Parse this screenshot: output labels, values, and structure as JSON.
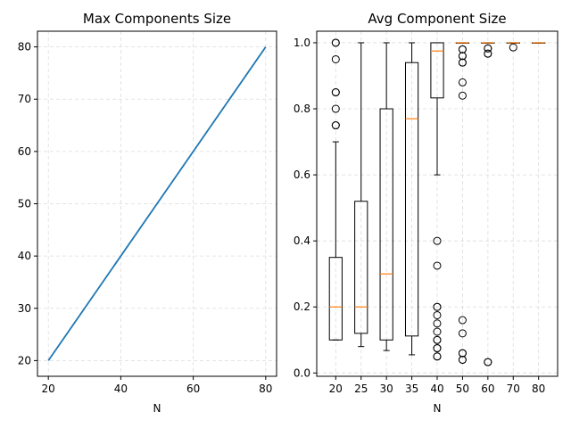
{
  "chart_data": [
    {
      "type": "line",
      "title": "Max Components Size",
      "xlabel": "N",
      "ylabel": "",
      "xlim": [
        17,
        83
      ],
      "ylim": [
        17,
        83
      ],
      "xticks": [
        20,
        40,
        60,
        80
      ],
      "yticks": [
        20,
        30,
        40,
        50,
        60,
        70,
        80
      ],
      "grid": true,
      "series": [
        {
          "x": [
            20,
            80
          ],
          "y": [
            20,
            80
          ],
          "color": "#1f77b4"
        }
      ]
    },
    {
      "type": "box",
      "title": "Avg Component Size",
      "xlabel": "N",
      "ylabel": "",
      "ylim": [
        -0.01,
        1.035
      ],
      "yticks": [
        0.0,
        0.2,
        0.4,
        0.6,
        0.8,
        1.0
      ],
      "grid": true,
      "categories": [
        "20",
        "25",
        "30",
        "35",
        "40",
        "50",
        "60",
        "70",
        "80"
      ],
      "boxes": [
        {
          "whislo": 0.1,
          "q1": 0.1,
          "med": 0.2,
          "q3": 0.35,
          "whishi": 0.7,
          "fliers": [
            0.75,
            0.75,
            0.8,
            0.85,
            0.85,
            0.95,
            1.0,
            1.0
          ]
        },
        {
          "whislo": 0.08,
          "q1": 0.12,
          "med": 0.2,
          "q3": 0.52,
          "whishi": 1.0,
          "fliers": []
        },
        {
          "whislo": 0.068,
          "q1": 0.1,
          "med": 0.3,
          "q3": 0.8,
          "whishi": 1.0,
          "fliers": []
        },
        {
          "whislo": 0.055,
          "q1": 0.112,
          "med": 0.77,
          "q3": 0.94,
          "whishi": 1.0,
          "fliers": []
        },
        {
          "whislo": 0.6,
          "q1": 0.833,
          "med": 0.975,
          "q3": 1.0,
          "whishi": 1.0,
          "fliers": [
            0.4,
            0.325,
            0.2,
            0.2,
            0.175,
            0.15,
            0.125,
            0.1,
            0.1,
            0.075,
            0.075,
            0.05,
            0.05
          ]
        },
        {
          "whislo": 1.0,
          "q1": 1.0,
          "med": 1.0,
          "q3": 1.0,
          "whishi": 1.0,
          "fliers": [
            0.98,
            0.98,
            0.96,
            0.96,
            0.94,
            0.94,
            0.88,
            0.84,
            0.16,
            0.12,
            0.06,
            0.06,
            0.04,
            0.04
          ]
        },
        {
          "whislo": 1.0,
          "q1": 1.0,
          "med": 1.0,
          "q3": 1.0,
          "whishi": 1.0,
          "fliers": [
            0.983,
            0.983,
            0.967,
            0.967,
            0.033,
            0.033
          ]
        },
        {
          "whislo": 1.0,
          "q1": 1.0,
          "med": 1.0,
          "q3": 1.0,
          "whishi": 1.0,
          "fliers": [
            0.986
          ]
        },
        {
          "whislo": 1.0,
          "q1": 1.0,
          "med": 1.0,
          "q3": 1.0,
          "whishi": 1.0,
          "fliers": []
        }
      ],
      "box_color": "#000000",
      "median_color": "#ff7f0e"
    }
  ]
}
